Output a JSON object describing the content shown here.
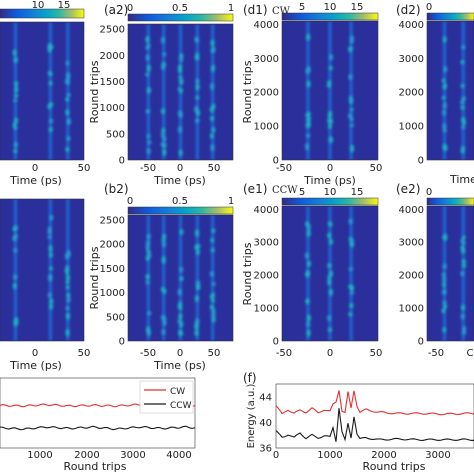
{
  "figure": {
    "panel_labels": {
      "a2": "(a2)",
      "b2": "(b2)",
      "d1": "(d1)",
      "d2": "(d2)",
      "e1": "(e1)",
      "e2": "(e2)",
      "f": "(f)"
    },
    "direction_labels": {
      "d1": "CW",
      "e1": "CCW"
    }
  },
  "chart_data": [
    {
      "id": "a1",
      "type": "heatmap",
      "colorbar": {
        "ticks": [
          "10",
          "15"
        ],
        "range": [
          0,
          18
        ]
      },
      "x": {
        "label": "Time (ps)",
        "ticks": [
          "0",
          "50"
        ],
        "range": [
          -75,
          50
        ]
      },
      "y": {
        "range": [
          0,
          2600
        ]
      },
      "traces_x": [
        -52,
        0,
        26
      ]
    },
    {
      "id": "a2",
      "type": "heatmap",
      "colorbar": {
        "ticks": [
          "0",
          "0.5",
          "1"
        ],
        "range": [
          0,
          1
        ]
      },
      "x": {
        "label": "Time (ps)",
        "ticks": [
          "-50",
          "0",
          "50"
        ],
        "range": [
          -75,
          75
        ]
      },
      "y": {
        "label": "Round trips",
        "ticks": [
          "0",
          "500",
          "1000",
          "1500",
          "2000",
          "2500"
        ],
        "range": [
          0,
          2600
        ]
      },
      "traces_x": [
        -46,
        -24,
        0,
        24,
        46
      ]
    },
    {
      "id": "d1",
      "type": "heatmap",
      "colorbar": {
        "ticks": [
          "5",
          "10",
          "15"
        ],
        "range": [
          0,
          18
        ]
      },
      "x": {
        "label": "Time (ps)",
        "ticks": [
          "-50",
          "0",
          "50"
        ],
        "range": [
          -50,
          50
        ]
      },
      "y": {
        "label": "Round trips",
        "ticks": [
          "0",
          "1000",
          "2000",
          "3000",
          "4000"
        ],
        "range": [
          0,
          4100
        ]
      },
      "traces_x": [
        -23,
        0,
        22
      ]
    },
    {
      "id": "d2",
      "type": "heatmap",
      "colorbar": {
        "ticks": [
          "0"
        ],
        "range": [
          0,
          1
        ]
      },
      "x": {
        "label": "Time",
        "ticks": [],
        "range": [
          -75,
          -40
        ]
      },
      "y": {
        "ticks": [
          "0",
          "1000",
          "2000",
          "3000",
          "4000"
        ],
        "range": [
          0,
          4100
        ]
      },
      "traces_x": [
        -62,
        -48
      ]
    },
    {
      "id": "b1",
      "type": "heatmap",
      "x": {
        "label": "Time (ps)",
        "ticks": [
          "0",
          "50"
        ],
        "range": [
          -75,
          50
        ]
      },
      "y": {
        "range": [
          0,
          2600
        ]
      },
      "traces_x": [
        -52,
        0,
        26
      ]
    },
    {
      "id": "b2",
      "type": "heatmap",
      "colorbar": {
        "ticks": [
          "0",
          "0.5",
          "1"
        ],
        "range": [
          0,
          1
        ]
      },
      "x": {
        "label": "Time (ps)",
        "ticks": [
          "-50",
          "0",
          "50"
        ],
        "range": [
          -75,
          75
        ]
      },
      "y": {
        "label": "Round trips",
        "ticks": [
          "0",
          "500",
          "1000",
          "1500",
          "2000",
          "2500"
        ],
        "range": [
          0,
          2600
        ]
      },
      "traces_x": [
        -46,
        -24,
        0,
        24,
        46
      ]
    },
    {
      "id": "e1",
      "type": "heatmap",
      "colorbar": {
        "ticks": [
          "5",
          "10",
          "15"
        ],
        "range": [
          0,
          18
        ]
      },
      "x": {
        "label": "Time (ps)",
        "ticks": [
          "-50",
          "0",
          "50"
        ],
        "range": [
          -50,
          50
        ]
      },
      "y": {
        "label": "Round trips",
        "ticks": [
          "0",
          "1000",
          "2000",
          "3000",
          "4000"
        ],
        "range": [
          0,
          4100
        ]
      },
      "traces_x": [
        -23,
        0,
        22
      ]
    },
    {
      "id": "e2",
      "type": "heatmap",
      "colorbar": {
        "ticks": [
          "0"
        ],
        "range": [
          0,
          1
        ]
      },
      "x": {
        "ticks": [
          "-50",
          "C"
        ],
        "range": [
          -75,
          -40
        ]
      },
      "y": {
        "ticks": [
          "0",
          "1000",
          "2000",
          "3000",
          "4000"
        ],
        "range": [
          0,
          4100
        ]
      },
      "traces_x": [
        -62,
        -48
      ]
    },
    {
      "id": "c",
      "type": "line",
      "x": {
        "label": "Round trips",
        "ticks": [
          "1000",
          "2000",
          "3000",
          "4000"
        ],
        "range": [
          0,
          4200
        ]
      },
      "y": {
        "range": [
          36,
          46
        ]
      },
      "legend": {
        "position": "top-right"
      },
      "series": [
        {
          "name": "CW",
          "color": "#e4302e",
          "x": [
            0,
            500,
            1000,
            1500,
            2000,
            2500,
            3000,
            3500,
            4000,
            4200
          ],
          "y": [
            42.1,
            42.0,
            42.2,
            42.0,
            42.1,
            42.0,
            42.2,
            42.0,
            42.1,
            42.1
          ]
        },
        {
          "name": "CCW",
          "color": "#1a1a1a",
          "x": [
            0,
            500,
            1000,
            1500,
            2000,
            2500,
            3000,
            3500,
            4000,
            4200
          ],
          "y": [
            38.9,
            38.7,
            39.0,
            38.8,
            39.0,
            38.7,
            39.0,
            38.8,
            39.0,
            38.9
          ]
        }
      ]
    },
    {
      "id": "f",
      "type": "line",
      "x": {
        "label": "Round trips",
        "ticks": [
          "0",
          "1000",
          "2000",
          "3000"
        ],
        "range": [
          0,
          3300
        ]
      },
      "y": {
        "label": "Energy (a.u.)",
        "ticks": [
          "36",
          "40",
          "44"
        ],
        "range": [
          36,
          46
        ]
      },
      "series": [
        {
          "name": "CW",
          "color": "#e4302e",
          "x": [
            0,
            100,
            200,
            300,
            400,
            500,
            600,
            700,
            800,
            900,
            950,
            1000,
            1050,
            1100,
            1150,
            1200,
            1250,
            1300,
            1350,
            1400,
            1500,
            1700,
            2000,
            2400,
            2800,
            3200,
            3300
          ],
          "y": [
            42.6,
            41.3,
            42.0,
            41.4,
            41.9,
            41.6,
            42.2,
            41.5,
            42.0,
            41.7,
            42.8,
            43.2,
            45.1,
            41.8,
            41.5,
            44.7,
            42.2,
            45.0,
            42.6,
            41.6,
            42.0,
            41.6,
            41.4,
            41.4,
            41.3,
            41.4,
            41.4
          ]
        },
        {
          "name": "CCW",
          "color": "#1a1a1a",
          "x": [
            0,
            100,
            200,
            300,
            400,
            500,
            600,
            700,
            800,
            900,
            950,
            1000,
            1050,
            1100,
            1150,
            1200,
            1250,
            1300,
            1350,
            1400,
            1500,
            1700,
            2000,
            2400,
            2800,
            3200,
            3300
          ],
          "y": [
            38.6,
            37.7,
            38.1,
            37.6,
            38.4,
            37.5,
            38.0,
            37.6,
            37.9,
            37.7,
            39.2,
            37.1,
            42.3,
            38.5,
            37.2,
            39.8,
            37.6,
            41.0,
            38.2,
            37.4,
            37.6,
            37.3,
            37.4,
            37.3,
            37.3,
            37.3,
            37.3
          ]
        }
      ]
    }
  ]
}
